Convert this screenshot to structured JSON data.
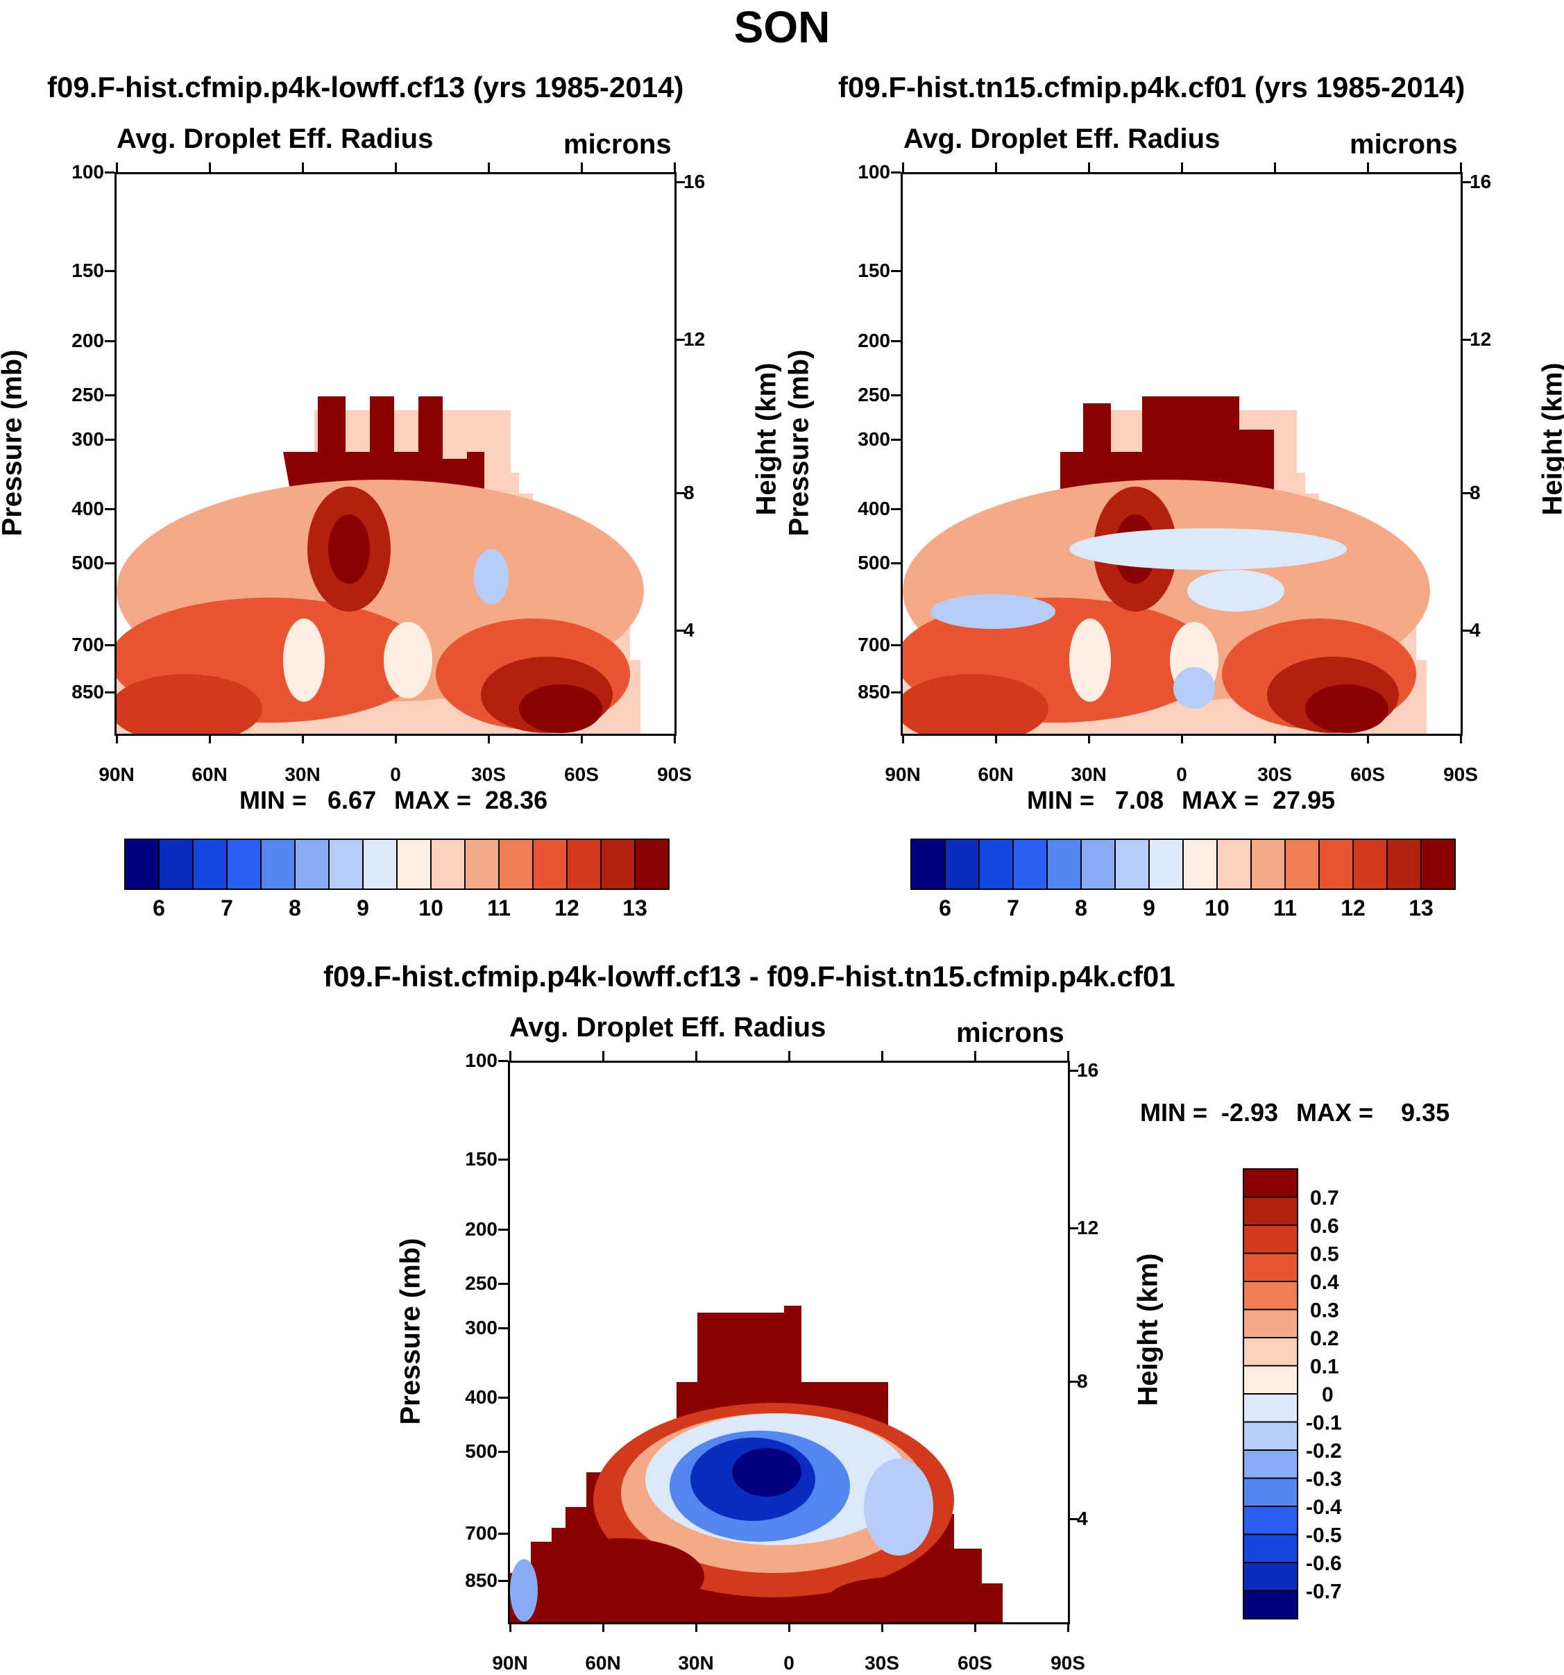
{
  "title": "SON",
  "chart_data": [
    {
      "type": "heatmap",
      "title": "f09.F-hist.cfmip.p4k-lowff.cf13 (yrs 1985-2014)",
      "variable": "Avg. Droplet Eff. Radius",
      "units": "microns",
      "ylabel": "Pressure (mb)",
      "ylabel_right": "Height (km)",
      "xticks": [
        "90N",
        "60N",
        "30N",
        "0",
        "30S",
        "60S",
        "90S"
      ],
      "yticks": [
        "100",
        "150",
        "200",
        "250",
        "300",
        "400",
        "500",
        "700",
        "850"
      ],
      "yticks_right": [
        "16",
        "12",
        "8",
        "4"
      ],
      "ylog": true,
      "ylim": [
        100,
        1000
      ],
      "min_text": "MIN =   6.67",
      "max_text": "MAX =  28.36",
      "colorbar_ticks": [
        "6",
        "7",
        "8",
        "9",
        "10",
        "11",
        "12",
        "13"
      ],
      "colors": [
        "#000080",
        "#0a2dbf",
        "#1447e0",
        "#2b5ef2",
        "#5486f0",
        "#88abf5",
        "#b7cdf9",
        "#dbe9fb",
        "#fdeee2",
        "#fbd0bc",
        "#f6a986",
        "#f07e55",
        "#e75532",
        "#d13a1a",
        "#b3200f",
        "#8b0000"
      ]
    },
    {
      "type": "heatmap",
      "title": "f09.F-hist.tn15.cfmip.p4k.cf01 (yrs 1985-2014)",
      "variable": "Avg. Droplet Eff. Radius",
      "units": "microns",
      "ylabel": "Pressure (mb)",
      "ylabel_right": "Height (km)",
      "xticks": [
        "90N",
        "60N",
        "30N",
        "0",
        "30S",
        "60S",
        "90S"
      ],
      "yticks": [
        "100",
        "150",
        "200",
        "250",
        "300",
        "400",
        "500",
        "700",
        "850"
      ],
      "yticks_right": [
        "16",
        "12",
        "8",
        "4"
      ],
      "ylog": true,
      "ylim": [
        100,
        1000
      ],
      "min_text": "MIN =   7.08",
      "max_text": "MAX =  27.95",
      "colorbar_ticks": [
        "6",
        "7",
        "8",
        "9",
        "10",
        "11",
        "12",
        "13"
      ],
      "colors": [
        "#000080",
        "#0a2dbf",
        "#1447e0",
        "#2b5ef2",
        "#5486f0",
        "#88abf5",
        "#b7cdf9",
        "#dbe9fb",
        "#fdeee2",
        "#fbd0bc",
        "#f6a986",
        "#f07e55",
        "#e75532",
        "#d13a1a",
        "#b3200f",
        "#8b0000"
      ]
    },
    {
      "type": "heatmap",
      "title": "f09.F-hist.cfmip.p4k-lowff.cf13 - f09.F-hist.tn15.cfmip.p4k.cf01",
      "variable": "Avg. Droplet Eff. Radius",
      "units": "microns",
      "ylabel": "Pressure (mb)",
      "ylabel_right": "Height (km)",
      "xticks": [
        "90N",
        "60N",
        "30N",
        "0",
        "30S",
        "60S",
        "90S"
      ],
      "yticks": [
        "100",
        "150",
        "200",
        "250",
        "300",
        "400",
        "500",
        "700",
        "850"
      ],
      "yticks_right": [
        "16",
        "12",
        "8",
        "4"
      ],
      "ylog": true,
      "ylim": [
        100,
        1000
      ],
      "min_text": "MIN =  -2.93",
      "max_text": "MAX =    9.35",
      "colorbar_ticks": [
        "0.7",
        "0.6",
        "0.5",
        "0.4",
        "0.3",
        "0.2",
        "0.1",
        "0",
        "-0.1",
        "-0.2",
        "-0.3",
        "-0.4",
        "-0.5",
        "-0.6",
        "-0.7"
      ],
      "colors": [
        "#8b0000",
        "#b3200f",
        "#d13a1a",
        "#e75532",
        "#f07e55",
        "#f6a986",
        "#fbd0bc",
        "#fdeee2",
        "#dbe9fb",
        "#b7cdf9",
        "#88abf5",
        "#5486f0",
        "#2b5ef2",
        "#1447e0",
        "#0a2dbf",
        "#000080"
      ]
    }
  ]
}
